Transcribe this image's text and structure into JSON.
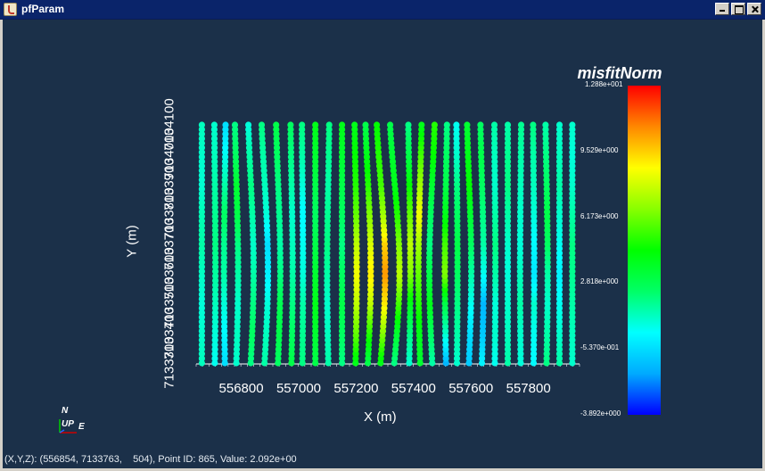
{
  "window": {
    "title": "pfParam",
    "buttons": [
      "minimize",
      "maximize",
      "close"
    ]
  },
  "status_bar": {
    "text": "(X,Y,Z): (556854, 7133763,    504), Point ID: 865, Value: 2.092e+00"
  },
  "orientation": {
    "north": "N",
    "up": "UP",
    "east": "E"
  },
  "colors": {
    "background": "#1b3049",
    "titlebar": "#0a246a",
    "colormap": [
      "#0000ff",
      "#00aaff",
      "#00ffff",
      "#00ff66",
      "#00ff00",
      "#88ff00",
      "#ffff00",
      "#ff8800",
      "#ff0000"
    ]
  },
  "chart_data": {
    "type": "scatter",
    "colorbar": {
      "title": "misfitNorm",
      "min": -3.892,
      "max": 12.88,
      "tick_labels": [
        "1.288e+001",
        "9.529e+000",
        "6.173e+000",
        "2.818e+000",
        "-5.370e-001",
        "-3.892e+000"
      ]
    },
    "xlabel": "X (m)",
    "ylabel": "Y (m)",
    "x_tick_labels": [
      "556800",
      "557000",
      "557200",
      "557400",
      "557600",
      "557800"
    ],
    "x_ticks": [
      556800,
      557000,
      557200,
      557400,
      557600,
      557800
    ],
    "y_tick_labels": [
      "7133300",
      "7133400",
      "7133500",
      "7133600",
      "7133700",
      "7133800",
      "7133900",
      "7134000",
      "7134100"
    ],
    "y_ticks": [
      7133300,
      7133400,
      7133500,
      7133600,
      7133700,
      7133800,
      7133900,
      7134000,
      7134100
    ],
    "xlim": [
      556640,
      557975
    ],
    "ylim": [
      7133300,
      7134100
    ],
    "lines": [
      {
        "x": 556660,
        "dx": 0,
        "values": [
          1.2,
          1.0,
          0.8,
          1.1,
          1.5,
          1.3,
          0.9,
          1.0,
          1.2
        ]
      },
      {
        "x": 556705,
        "dx": 2,
        "values": [
          0.5,
          0.8,
          1.2,
          1.6,
          2.0,
          1.8,
          1.5,
          1.2,
          1.0
        ]
      },
      {
        "x": 556740,
        "dx": -3,
        "values": [
          -0.5,
          0.2,
          0.8,
          1.5,
          1.8,
          2.5,
          1.5,
          0.5,
          -0.5
        ]
      },
      {
        "x": 556780,
        "dx": 6,
        "values": [
          1.0,
          1.2,
          1.0,
          1.5,
          2.0,
          3.0,
          3.5,
          2.5,
          2.0
        ]
      },
      {
        "x": 556830,
        "dx": 10,
        "values": [
          2.0,
          2.5,
          2.0,
          1.5,
          1.0,
          1.5,
          2.0,
          1.5,
          0.8
        ]
      },
      {
        "x": 556878,
        "dx": 12,
        "values": [
          1.5,
          1.2,
          0.8,
          0.0,
          -0.5,
          0.8,
          1.2,
          1.5,
          2.0
        ]
      },
      {
        "x": 556925,
        "dx": 8,
        "values": [
          2.5,
          3.0,
          2.8,
          2.0,
          1.5,
          1.8,
          2.0,
          2.5,
          3.0
        ]
      },
      {
        "x": 556972,
        "dx": 4,
        "values": [
          3.0,
          2.5,
          2.0,
          1.5,
          1.2,
          1.0,
          1.5,
          2.0,
          2.5
        ]
      },
      {
        "x": 557010,
        "dx": 2,
        "values": [
          2.0,
          1.8,
          1.5,
          0.8,
          0.5,
          0.2,
          0.8,
          1.5,
          2.0
        ]
      },
      {
        "x": 557055,
        "dx": 0,
        "values": [
          3.0,
          3.5,
          4.0,
          3.5,
          3.0,
          2.5,
          3.0,
          3.5,
          4.0
        ]
      },
      {
        "x": 557100,
        "dx": -4,
        "values": [
          1.5,
          1.2,
          1.0,
          1.5,
          2.0,
          1.8,
          1.5,
          1.8,
          2.0
        ]
      },
      {
        "x": 557148,
        "dx": 0,
        "values": [
          2.0,
          2.5,
          3.0,
          2.5,
          2.0,
          2.5,
          3.0,
          3.5,
          4.0
        ]
      },
      {
        "x": 557195,
        "dx": 4,
        "values": [
          4.0,
          6.0,
          7.5,
          8.5,
          7.5,
          6.0,
          5.0,
          4.5,
          4.0
        ]
      },
      {
        "x": 557238,
        "dx": 10,
        "values": [
          3.0,
          5.0,
          7.5,
          9.0,
          8.0,
          6.5,
          5.0,
          4.0,
          3.0
        ]
      },
      {
        "x": 557282,
        "dx": 16,
        "values": [
          4.0,
          6.5,
          9.0,
          10.5,
          9.5,
          7.0,
          5.5,
          5.0,
          4.5
        ]
      },
      {
        "x": 557330,
        "dx": 18,
        "values": [
          2.0,
          3.5,
          5.5,
          7.5,
          6.5,
          5.0,
          4.0,
          3.5,
          3.0
        ]
      },
      {
        "x": 557382,
        "dx": 4,
        "values": [
          1.0,
          2.0,
          4.0,
          6.5,
          7.5,
          6.0,
          4.5,
          3.0,
          2.0
        ]
      },
      {
        "x": 557420,
        "dx": -6,
        "values": [
          3.5,
          4.0,
          5.0,
          6.0,
          7.0,
          8.5,
          7.0,
          5.5,
          4.0
        ]
      },
      {
        "x": 557462,
        "dx": -10,
        "values": [
          1.5,
          2.5,
          4.0,
          3.0,
          2.0,
          2.5,
          3.5,
          4.5,
          5.0
        ]
      },
      {
        "x": 557510,
        "dx": -4,
        "values": [
          -1.5,
          1.0,
          3.0,
          6.5,
          5.5,
          4.0,
          3.0,
          2.5,
          2.0
        ]
      },
      {
        "x": 557548,
        "dx": 2,
        "values": [
          1.0,
          1.5,
          2.0,
          2.5,
          3.0,
          2.5,
          2.0,
          1.0,
          0.5
        ]
      },
      {
        "x": 557590,
        "dx": 8,
        "values": [
          -1.0,
          -0.5,
          0.5,
          1.5,
          2.5,
          3.5,
          4.5,
          4.0,
          3.5
        ]
      },
      {
        "x": 557635,
        "dx": 6,
        "values": [
          0.0,
          -1.0,
          -1.5,
          0.5,
          1.5,
          2.0,
          2.5,
          3.0,
          2.5
        ]
      },
      {
        "x": 557680,
        "dx": 2,
        "values": [
          0.5,
          1.0,
          0.8,
          1.5,
          2.0,
          1.5,
          1.0,
          1.2,
          1.5
        ]
      },
      {
        "x": 557725,
        "dx": 0,
        "values": [
          1.5,
          1.2,
          1.0,
          0.8,
          1.0,
          1.5,
          2.0,
          1.8,
          1.5
        ]
      },
      {
        "x": 557770,
        "dx": -2,
        "values": [
          0.8,
          1.0,
          1.5,
          1.2,
          0.8,
          1.0,
          1.2,
          1.5,
          1.8
        ]
      },
      {
        "x": 557815,
        "dx": 2,
        "values": [
          0.2,
          0.5,
          1.0,
          -0.3,
          0.2,
          0.8,
          1.2,
          1.5,
          2.0
        ]
      },
      {
        "x": 557860,
        "dx": 4,
        "values": [
          2.0,
          1.5,
          1.0,
          1.5,
          2.5,
          3.0,
          2.5,
          2.0,
          1.5
        ]
      },
      {
        "x": 557905,
        "dx": 0,
        "values": [
          1.5,
          1.0,
          0.5,
          0.0,
          0.5,
          1.0,
          1.5,
          1.2,
          1.0
        ]
      },
      {
        "x": 557950,
        "dx": 0,
        "values": [
          1.0,
          1.2,
          1.5,
          1.8,
          2.0,
          1.5,
          1.0,
          0.8,
          1.0
        ]
      }
    ]
  }
}
